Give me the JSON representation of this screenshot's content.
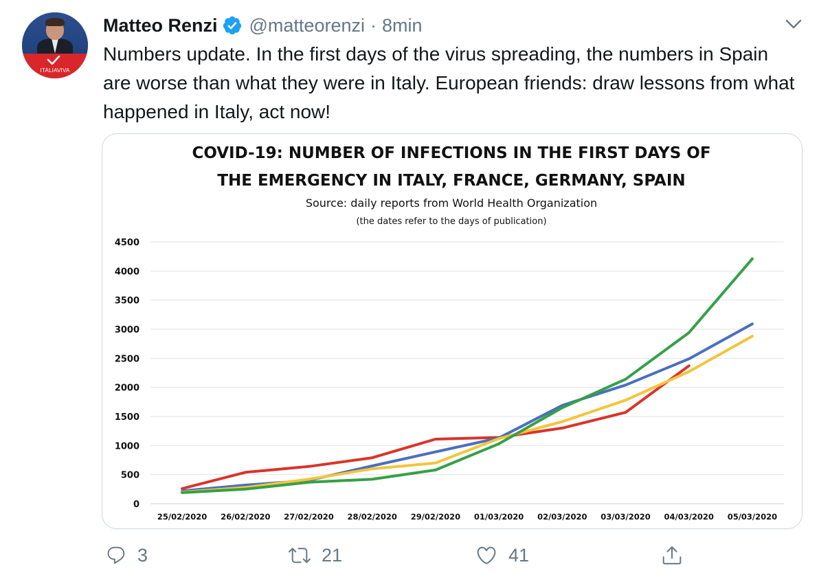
{
  "author": {
    "display_name": "Matteo Renzi",
    "handle": "@matteorenzi",
    "separator": "·",
    "time": "8min",
    "avatar_label": "ITALIAVIVA",
    "verified_icon": "verified-badge-icon"
  },
  "tweet": {
    "text": "Numbers update. In the first days of the virus spreading, the numbers in Spain are worse than what they were in Italy. European friends: draw lessons from what happened in Italy, act now!"
  },
  "actions": {
    "reply_count": "3",
    "retweet_count": "21",
    "like_count": "41"
  },
  "colors": {
    "accent_blue": "#1da1f2",
    "secondary_text": "#657786",
    "card_border": "#ccd6dd"
  },
  "chart_data": {
    "type": "line",
    "title_line1": "COVID-19: NUMBER OF INFECTIONS IN THE FIRST DAYS OF",
    "title_line2": "THE EMERGENCY IN ITALY, FRANCE, GERMANY, SPAIN",
    "subtitle": "Source: daily reports from World Health Organization",
    "note": "(the dates refer to the days of publication)",
    "xlabel": "",
    "ylabel": "",
    "ylim": [
      0,
      4500
    ],
    "yticks": [
      0,
      500,
      1000,
      1500,
      2000,
      2500,
      3000,
      3500,
      4000,
      4500
    ],
    "categories": [
      "25/02/2020",
      "26/02/2020",
      "27/02/2020",
      "28/02/2020",
      "29/02/2020",
      "01/03/2020",
      "02/03/2020",
      "03/03/2020",
      "04/03/2020",
      "05/03/2020"
    ],
    "grid": true,
    "legend": "none",
    "series": [
      {
        "color": "#d9342b",
        "values": [
          260,
          540,
          640,
          790,
          1110,
          1140,
          1300,
          1570,
          2370,
          null
        ]
      },
      {
        "color": "#4a6fbe",
        "values": [
          220,
          320,
          400,
          650,
          890,
          1130,
          1690,
          2040,
          2490,
          3090
        ]
      },
      {
        "color": "#f3c43d",
        "values": [
          200,
          280,
          420,
          600,
          700,
          1120,
          1410,
          1780,
          2270,
          2880
        ]
      },
      {
        "color": "#35a047",
        "values": [
          190,
          250,
          370,
          420,
          580,
          1030,
          1650,
          2140,
          2940,
          4210
        ]
      }
    ]
  }
}
